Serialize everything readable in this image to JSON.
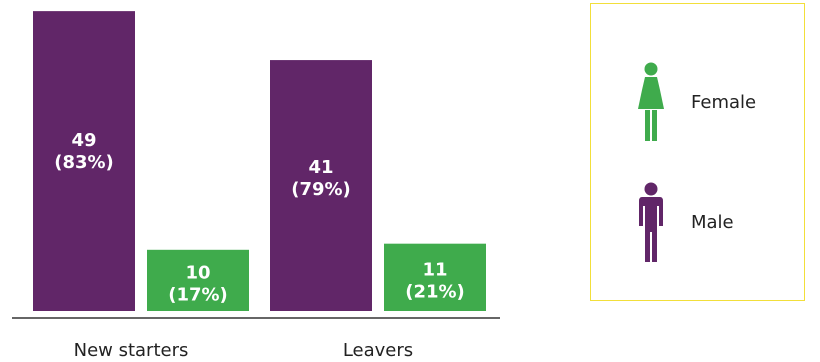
{
  "chart_data": {
    "type": "bar",
    "categories": [
      "New starters",
      "Leavers"
    ],
    "series": [
      {
        "name": "Female",
        "color": "#612668",
        "values": [
          49,
          41
        ],
        "labels": [
          "49",
          "41"
        ],
        "percent_labels": [
          "(83%)",
          "(79%)"
        ]
      },
      {
        "name": "Male",
        "color": "#3fab4c",
        "values": [
          10,
          11
        ],
        "labels": [
          "10",
          "11"
        ],
        "percent_labels": [
          "(17%)",
          "(21%)"
        ]
      }
    ],
    "ylim": [
      0,
      50
    ]
  },
  "legend": {
    "female_label": "Female",
    "male_label": "Male",
    "female_icon": "female-figure-icon",
    "male_icon": "male-figure-icon",
    "border_color": "#f2df3a"
  }
}
